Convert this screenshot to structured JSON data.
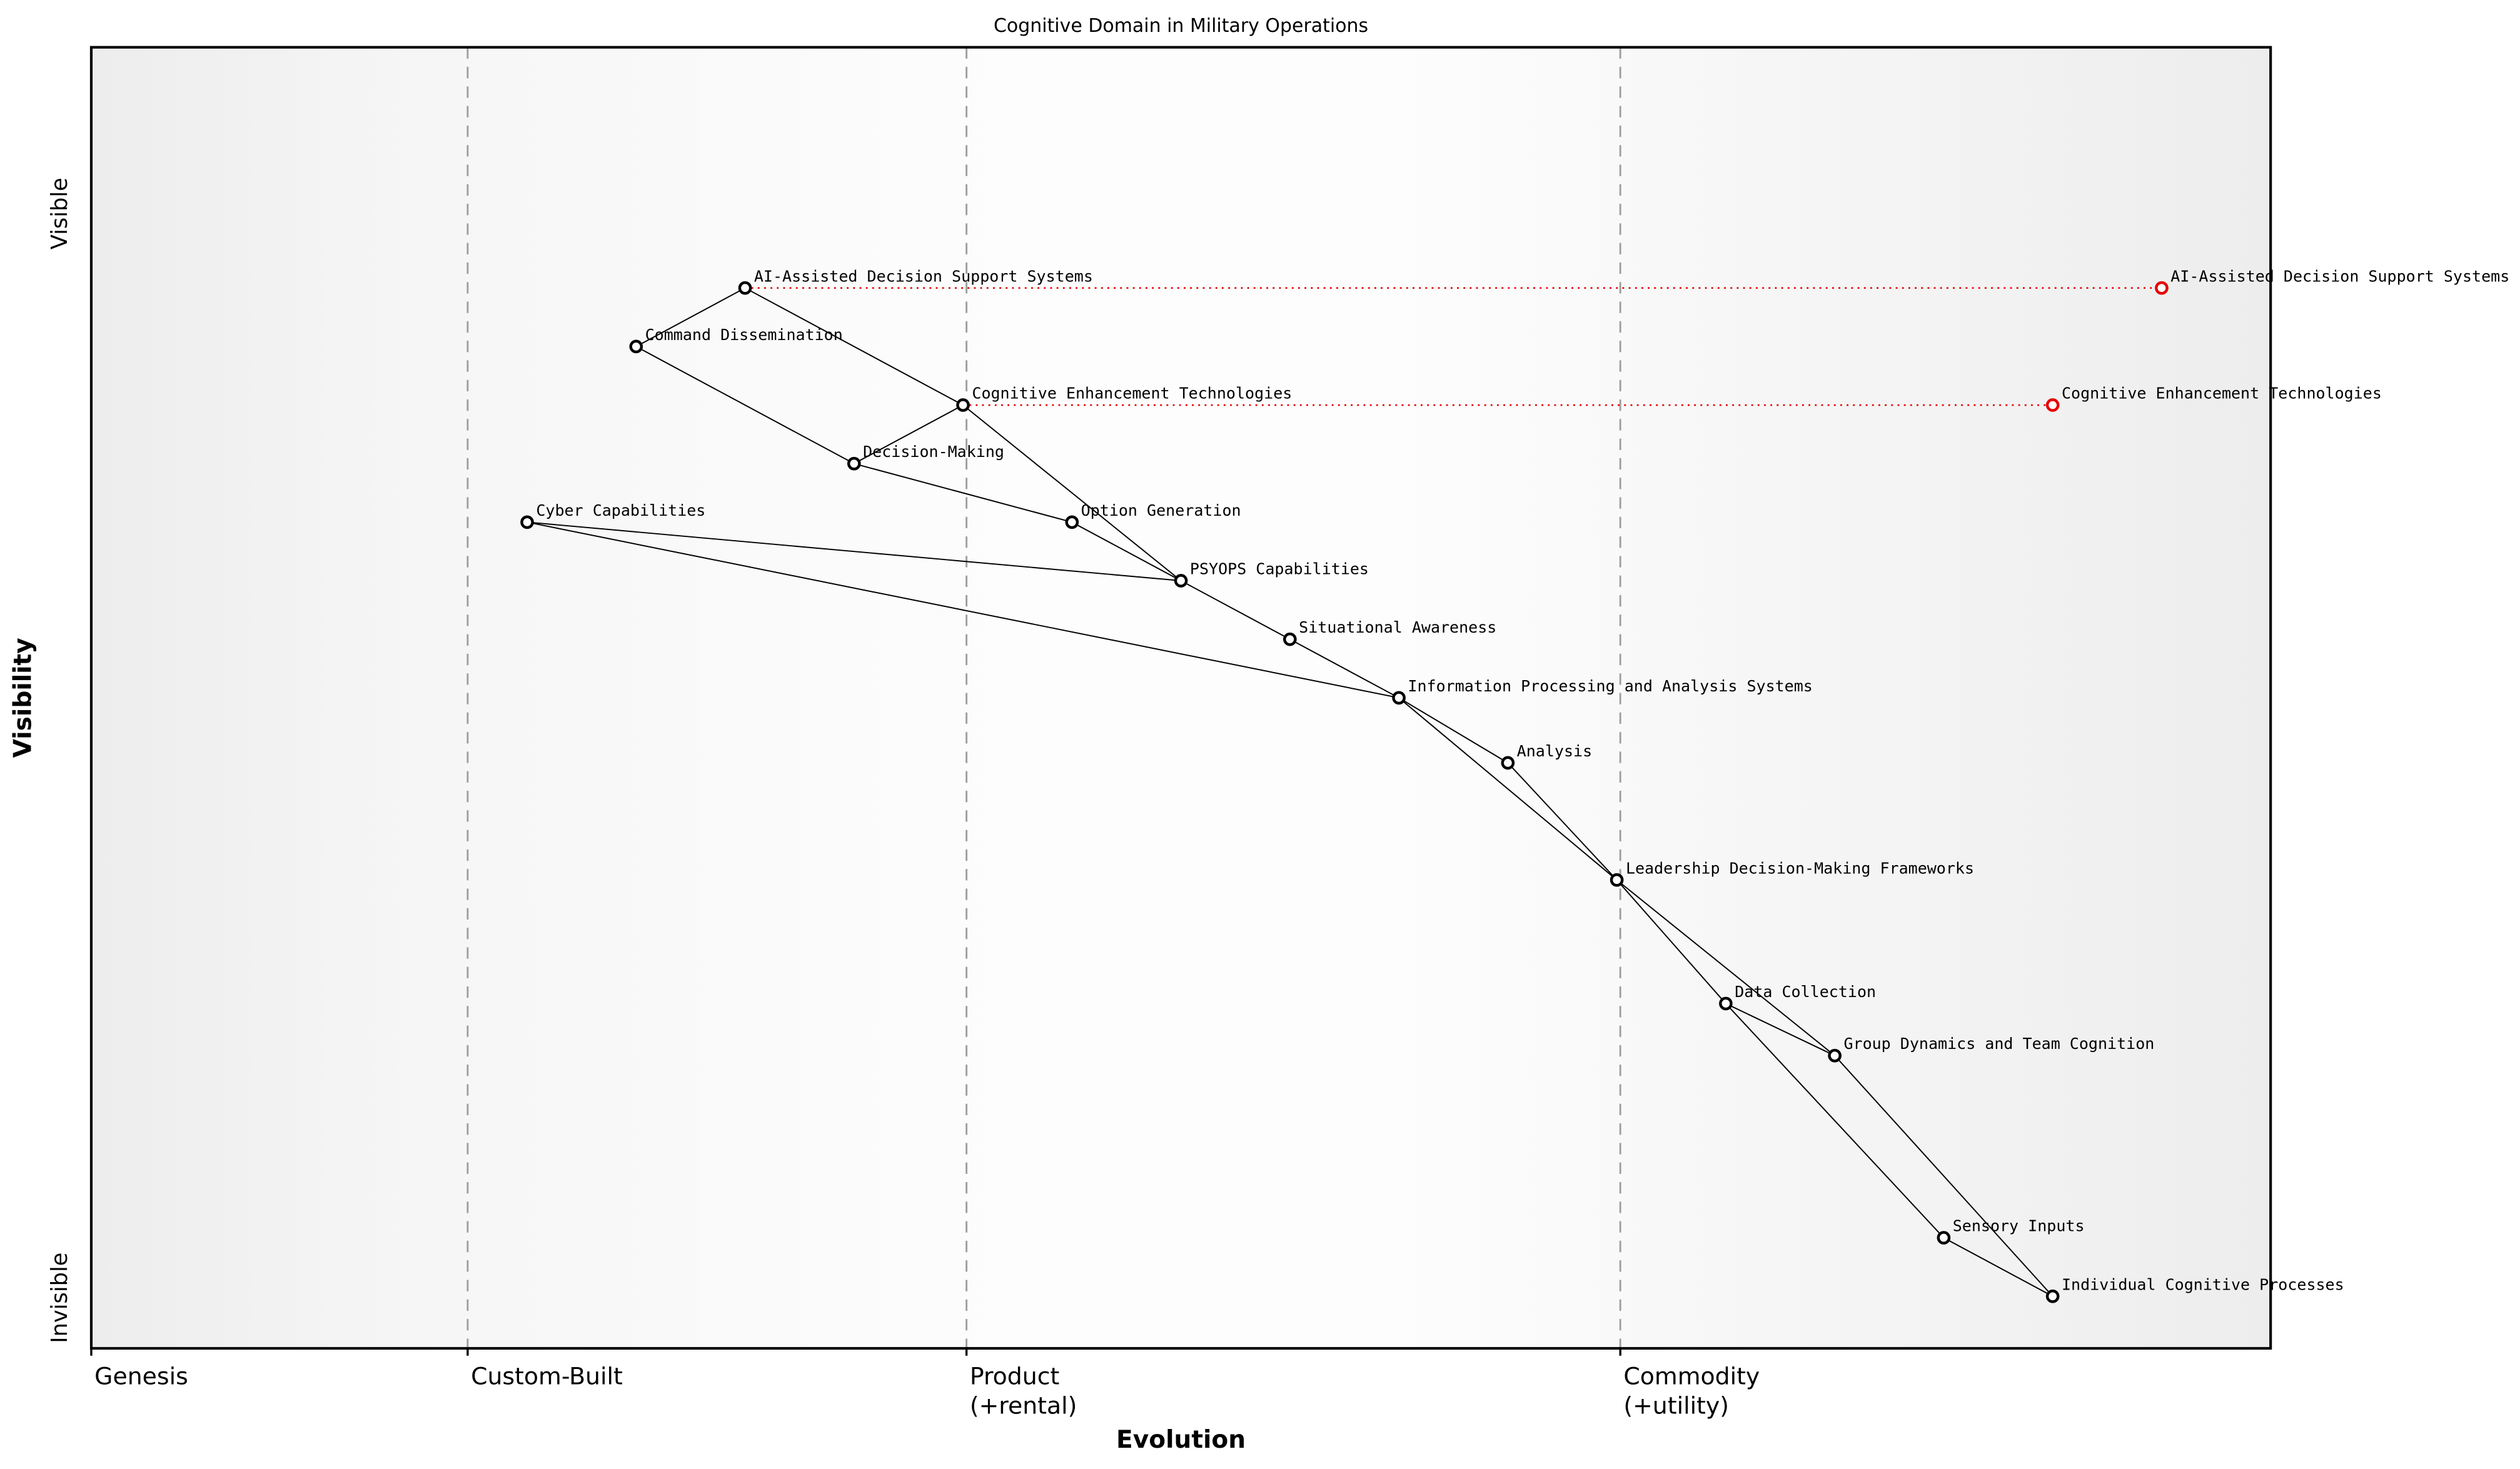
{
  "chart_data": {
    "type": "scatter",
    "subtype": "wardley-map",
    "title": "Cognitive Domain in Military Operations",
    "xlabel": "Evolution",
    "ylabel": "Visibility",
    "grid": "vertical-dashed",
    "legend": false,
    "x_axis": {
      "range": [
        0,
        1
      ],
      "stages": [
        {
          "label": "Genesis",
          "sublabel": "",
          "boundary": 0.0
        },
        {
          "label": "Custom-Built",
          "sublabel": "",
          "boundary": 0.1727
        },
        {
          "label": "Product",
          "sublabel": "(+rental)",
          "boundary": 0.4016
        },
        {
          "label": "Commodity",
          "sublabel": "(+utility)",
          "boundary": 0.7016
        }
      ]
    },
    "y_axis": {
      "range": [
        0,
        1
      ],
      "top": "Visible",
      "bottom": "Invisible"
    },
    "nodes": [
      {
        "name": "Cyber Capabilities",
        "evolution": 0.2,
        "visibility": 0.635
      },
      {
        "name": "Command Dissemination",
        "evolution": 0.25,
        "visibility": 0.77
      },
      {
        "name": "AI-Assisted Decision Support Systems",
        "evolution": 0.3,
        "visibility": 0.815
      },
      {
        "name": "Decision-Making",
        "evolution": 0.35,
        "visibility": 0.68
      },
      {
        "name": "Cognitive Enhancement Technologies",
        "evolution": 0.4,
        "visibility": 0.725
      },
      {
        "name": "Option Generation",
        "evolution": 0.45,
        "visibility": 0.635
      },
      {
        "name": "PSYOPS Capabilities",
        "evolution": 0.5,
        "visibility": 0.59
      },
      {
        "name": "Situational Awareness",
        "evolution": 0.55,
        "visibility": 0.545
      },
      {
        "name": "Information Processing and Analysis Systems",
        "evolution": 0.6,
        "visibility": 0.5
      },
      {
        "name": "Analysis",
        "evolution": 0.65,
        "visibility": 0.45
      },
      {
        "name": "Leadership Decision-Making Frameworks",
        "evolution": 0.7,
        "visibility": 0.36
      },
      {
        "name": "Data Collection",
        "evolution": 0.75,
        "visibility": 0.265
      },
      {
        "name": "Group Dynamics and Team Cognition",
        "evolution": 0.8,
        "visibility": 0.225
      },
      {
        "name": "Sensory Inputs",
        "evolution": 0.85,
        "visibility": 0.085
      },
      {
        "name": "Individual Cognitive Processes",
        "evolution": 0.9,
        "visibility": 0.04
      }
    ],
    "edges": [
      [
        "AI-Assisted Decision Support Systems",
        "Command Dissemination"
      ],
      [
        "AI-Assisted Decision Support Systems",
        "Cognitive Enhancement Technologies"
      ],
      [
        "Command Dissemination",
        "Decision-Making"
      ],
      [
        "Cognitive Enhancement Technologies",
        "Decision-Making"
      ],
      [
        "Cognitive Enhancement Technologies",
        "PSYOPS Capabilities"
      ],
      [
        "Decision-Making",
        "Option Generation"
      ],
      [
        "Option Generation",
        "PSYOPS Capabilities"
      ],
      [
        "Cyber Capabilities",
        "PSYOPS Capabilities"
      ],
      [
        "Cyber Capabilities",
        "Information Processing and Analysis Systems"
      ],
      [
        "PSYOPS Capabilities",
        "Situational Awareness"
      ],
      [
        "Situational Awareness",
        "Information Processing and Analysis Systems"
      ],
      [
        "Information Processing and Analysis Systems",
        "Analysis"
      ],
      [
        "Information Processing and Analysis Systems",
        "Leadership Decision-Making Frameworks"
      ],
      [
        "Analysis",
        "Leadership Decision-Making Frameworks"
      ],
      [
        "Leadership Decision-Making Frameworks",
        "Data Collection"
      ],
      [
        "Leadership Decision-Making Frameworks",
        "Group Dynamics and Team Cognition"
      ],
      [
        "Data Collection",
        "Group Dynamics and Team Cognition"
      ],
      [
        "Data Collection",
        "Sensory Inputs"
      ],
      [
        "Group Dynamics and Team Cognition",
        "Individual Cognitive Processes"
      ],
      [
        "Sensory Inputs",
        "Individual Cognitive Processes"
      ]
    ],
    "evolved_nodes": [
      {
        "name": "AI-Assisted Decision Support Systems",
        "from": "AI-Assisted Decision Support Systems",
        "evolution": 0.95,
        "visibility": 0.815
      },
      {
        "name": "Cognitive Enhancement Technologies",
        "from": "Cognitive Enhancement Technologies",
        "evolution": 0.9,
        "visibility": 0.725
      }
    ]
  },
  "colors": {
    "edge": "#000000",
    "node_stroke": "#000000",
    "node_fill": "#ffffff",
    "evolved": "#e60000",
    "gridline": "#9e9e9e",
    "border": "#000000",
    "bg_edge": "#ededed",
    "bg_mid": "#f6f6f6",
    "bg_center": "#fdfdfd"
  }
}
